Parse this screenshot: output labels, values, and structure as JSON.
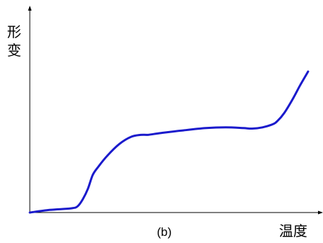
{
  "chart_data": {
    "type": "line",
    "title": "",
    "caption": "(b)",
    "xlabel": "温度",
    "ylabel": "形变",
    "ylabel_chars": [
      "形",
      "变"
    ],
    "xlim": [
      0,
      100
    ],
    "ylim": [
      0,
      100
    ],
    "grid": false,
    "legend": "none",
    "x_ticks_shown": false,
    "y_ticks_shown": false,
    "series": [
      {
        "color": "#1a1acc",
        "x": [
          0,
          7.1,
          14.8,
          17.2,
          19.1,
          20.9,
          22.6,
          24.6,
          27.8,
          32.2,
          36.4,
          39.8,
          42.7,
          47.2,
          55.3,
          63.3,
          70.4,
          76.7,
          79.9,
          83.6,
          87.3,
          89.0,
          91.4,
          94.5,
          97.1,
          100
        ],
        "y": [
          0,
          1.5,
          2.4,
          3.6,
          7.8,
          13.7,
          21.5,
          26.2,
          32.5,
          39.3,
          43.4,
          44.5,
          44.6,
          45.6,
          47.1,
          48.4,
          48.8,
          48.4,
          48.1,
          48.8,
          50.6,
          52.5,
          57.0,
          65.1,
          72.8,
          80.8
        ]
      }
    ]
  }
}
